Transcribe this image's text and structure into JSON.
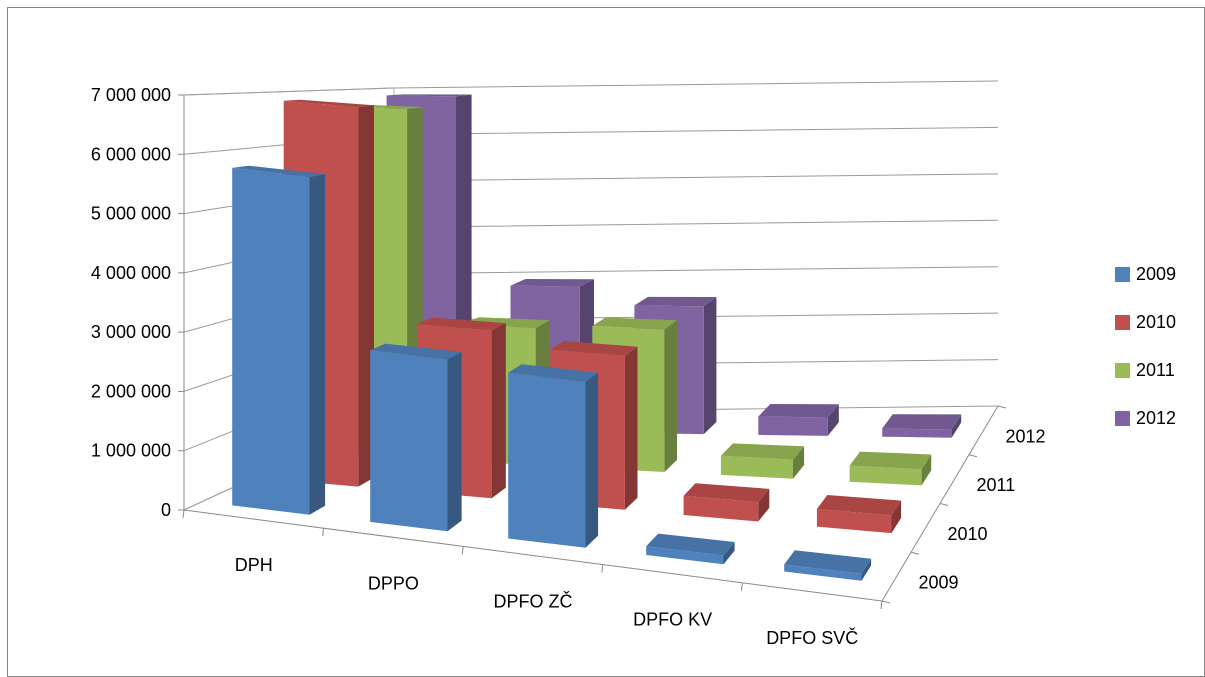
{
  "chart_data": {
    "type": "bar",
    "subtype": "3d-clustered-column",
    "categories": [
      "DPH",
      "DPPO",
      "DPFO ZČ",
      "DPFO KV",
      "DPFO SVČ"
    ],
    "series": [
      {
        "name": "2009",
        "color": "#4F81BD",
        "values": [
          5800000,
          2950000,
          2850000,
          150000,
          120000
        ]
      },
      {
        "name": "2010",
        "color": "#C0504D",
        "values": [
          6900000,
          3050000,
          2800000,
          350000,
          320000
        ]
      },
      {
        "name": "2011",
        "color": "#9BBB59",
        "values": [
          6750000,
          2650000,
          2750000,
          370000,
          310000
        ]
      },
      {
        "name": "2012",
        "color": "#8064A2",
        "values": [
          6880000,
          3000000,
          2630000,
          380000,
          170000
        ]
      }
    ],
    "depth_labels": [
      "2012",
      "2011",
      "2010",
      "2009"
    ],
    "y_ticks": [
      "0",
      "1 000 000",
      "2 000 000",
      "3 000 000",
      "4 000 000",
      "5 000 000",
      "6 000 000",
      "7 000 000"
    ],
    "ylim": [
      0,
      7000000
    ],
    "title": "",
    "xlabel": "",
    "ylabel": "",
    "grid": true,
    "legend": "right"
  }
}
